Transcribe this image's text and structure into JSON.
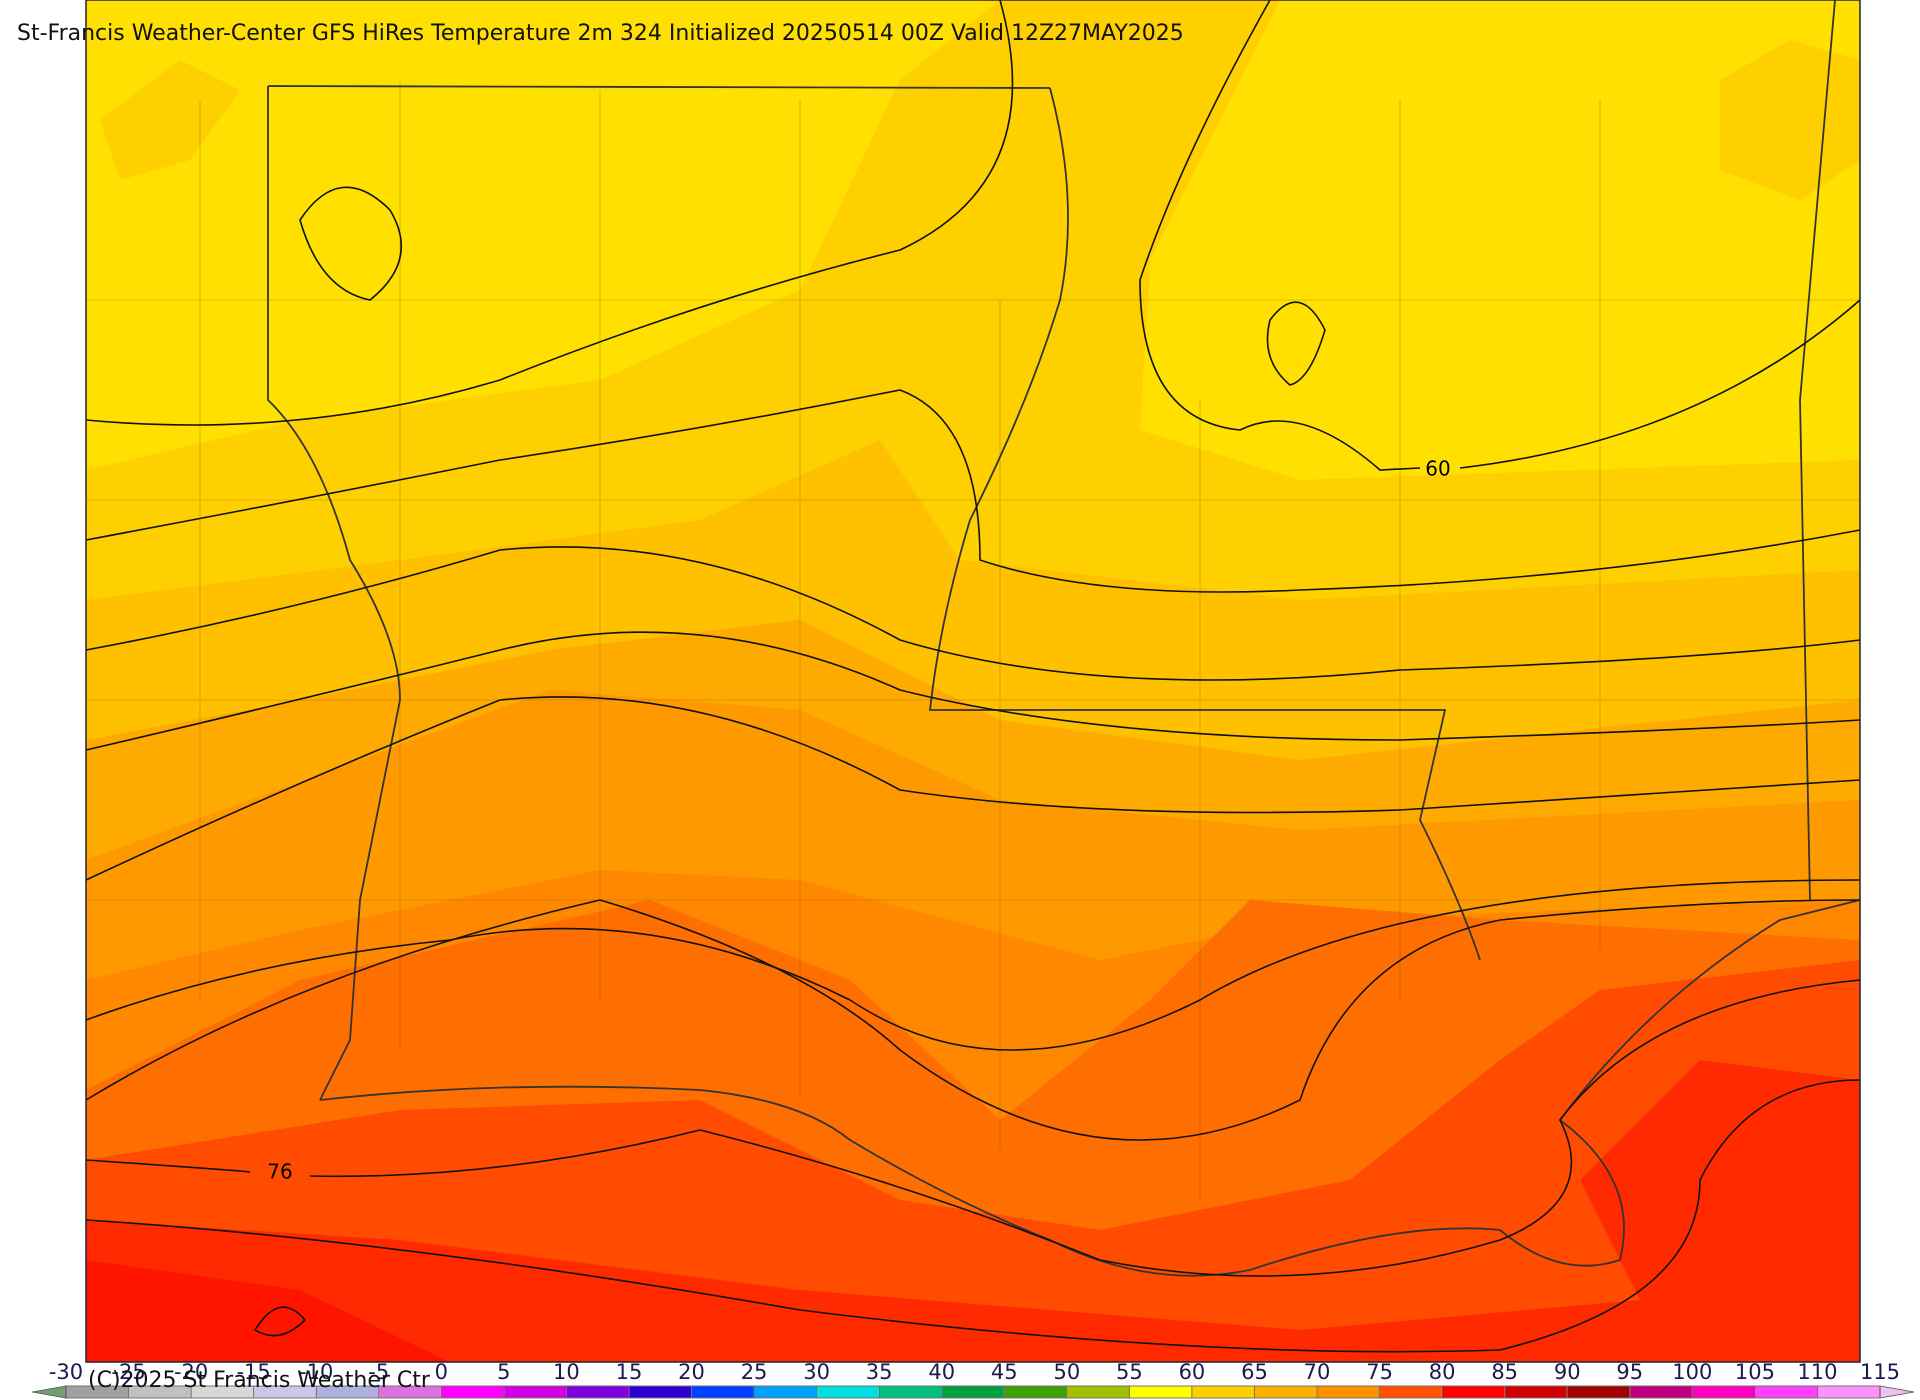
{
  "header": {
    "title": "St-Francis Weather-Center GFS HiRes Temperature 2m  324 Initialized 20250514 00Z Valid 12Z27MAY2025"
  },
  "contour_labels": [
    "60",
    "76"
  ],
  "footer": {
    "copyright": "(C)2025 St Francis Weather Ctr"
  },
  "colorbar": {
    "ticks": [
      -30,
      -25,
      -20,
      -15,
      -10,
      -5,
      0,
      5,
      10,
      15,
      20,
      25,
      30,
      35,
      40,
      45,
      50,
      55,
      60,
      65,
      70,
      75,
      80,
      85,
      90,
      95,
      100,
      105,
      110,
      115
    ],
    "colors": [
      "#a0a0a0",
      "#c0c0c0",
      "#d8d8d8",
      "#c8c8e8",
      "#b0b0e0",
      "#e070e0",
      "#ff00ff",
      "#d000e0",
      "#8000e0",
      "#3000d0",
      "#0040ff",
      "#00a0ff",
      "#00e0e0",
      "#00c080",
      "#00a040",
      "#40a000",
      "#a0c000",
      "#ffff00",
      "#ffd000",
      "#ffb000",
      "#ff9000",
      "#ff5000",
      "#ff0000",
      "#d00000",
      "#a00000",
      "#c00080",
      "#ff00c0",
      "#ff40ff",
      "#ff90ff"
    ],
    "under_color": "#70a070",
    "over_color": "#f0c0f0"
  }
}
